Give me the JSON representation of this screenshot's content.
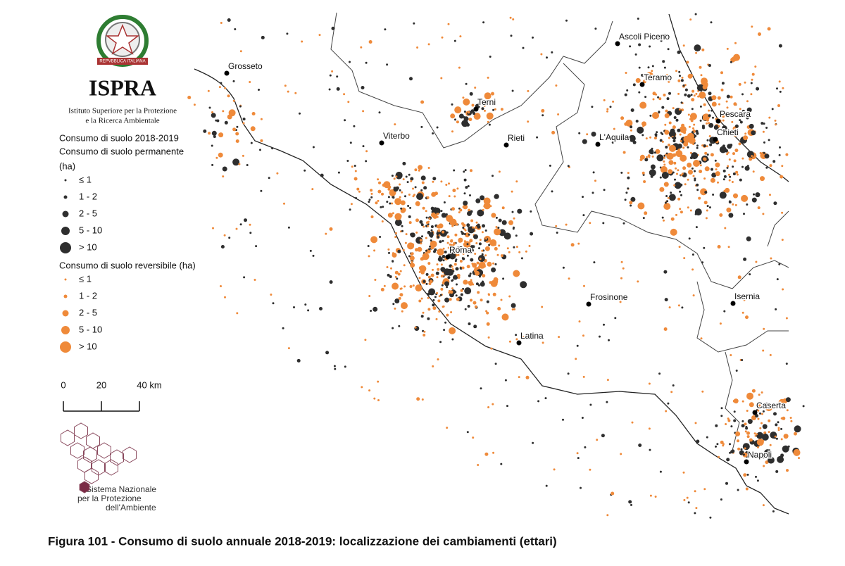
{
  "header": {
    "emblem_text": "REPVBBLICA ITALIANA",
    "title": "ISPRA",
    "subtitle_lines": [
      "Istituto Superiore per la Protezione",
      "e la Ricerca Ambientale"
    ]
  },
  "legend": {
    "title": "Consumo di suolo 2018-2019",
    "groups": [
      {
        "title_lines": [
          "Consumo di suolo permanente",
          "(ha)"
        ],
        "color": "#2e2e2e",
        "classes": [
          "≤ 1",
          "1 - 2",
          "2 - 5",
          "5 - 10",
          "> 10"
        ]
      },
      {
        "title_lines": [
          "Consumo di suolo reversibile (ha)"
        ],
        "color": "#ef8a3a",
        "classes": [
          "≤ 1",
          "1 - 2",
          "2 - 5",
          "5 - 10",
          "> 10"
        ]
      }
    ]
  },
  "scale": {
    "labels": [
      "0",
      "20",
      "40 km"
    ]
  },
  "cities": [
    "Grosseto",
    "Ascoli Piceno",
    "Teramo",
    "Terni",
    "Pescara",
    "Viterbo",
    "Rieti",
    "L'Aquila",
    "Chieti",
    "Roma",
    "Frosinone",
    "Isernia",
    "Latina",
    "Caserta",
    "Napoli"
  ],
  "logo": {
    "lines": [
      "Sistema Nazionale",
      "per la Protezione",
      "dell'Ambiente"
    ]
  },
  "caption": "Figura 101 - Consumo di suolo annuale 2018-2019: localizzazione dei cambiamenti (ettari)"
}
